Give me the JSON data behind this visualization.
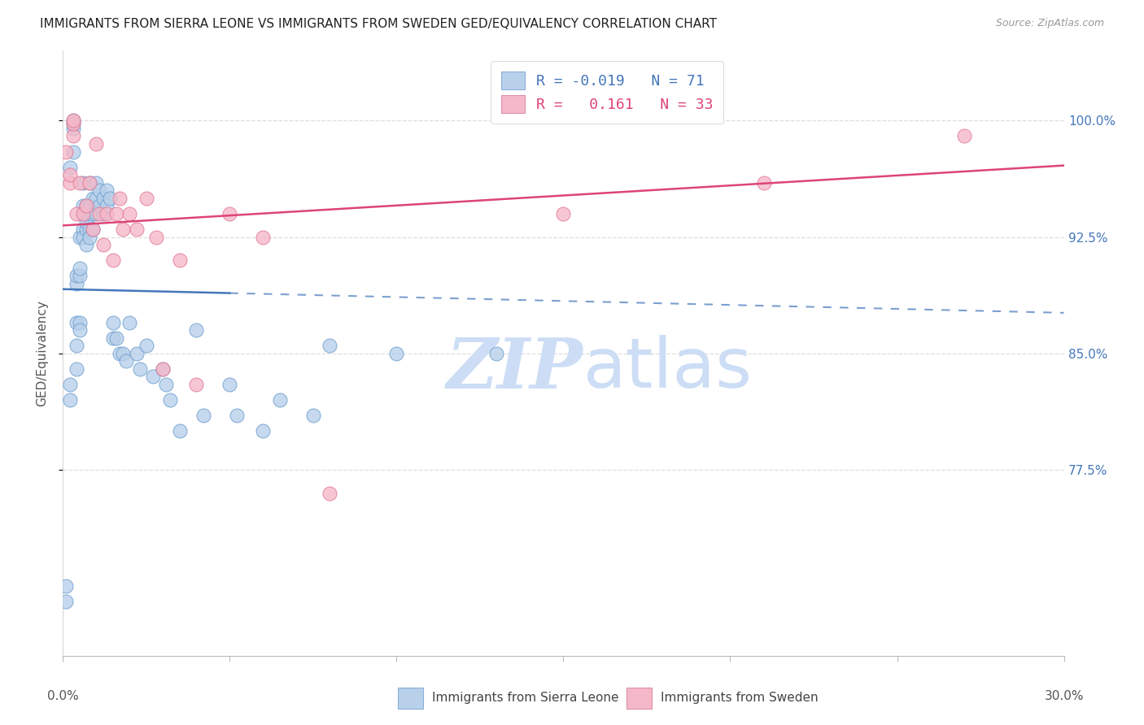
{
  "title": "IMMIGRANTS FROM SIERRA LEONE VS IMMIGRANTS FROM SWEDEN GED/EQUIVALENCY CORRELATION CHART",
  "source": "Source: ZipAtlas.com",
  "ylabel": "GED/Equivalency",
  "ytick_labels": [
    "100.0%",
    "92.5%",
    "85.0%",
    "77.5%"
  ],
  "ytick_values": [
    1.0,
    0.925,
    0.85,
    0.775
  ],
  "xlim": [
    0.0,
    0.3
  ],
  "ylim": [
    0.655,
    1.045
  ],
  "legend_R_blue": "-0.019",
  "legend_N_blue": "71",
  "legend_R_pink": "0.161",
  "legend_N_pink": "33",
  "legend_footer_blue": "Immigrants from Sierra Leone",
  "legend_footer_pink": "Immigrants from Sweden",
  "R_blue": -0.019,
  "R_pink": 0.161,
  "color_blue_fill": "#b8d0ea",
  "color_pink_fill": "#f5b8c8",
  "color_blue_edge": "#6699cc",
  "color_pink_edge": "#e07090",
  "color_blue_line": "#4477bb",
  "color_pink_line": "#dd4477",
  "watermark_color": "#ccddf5",
  "background": "#ffffff",
  "grid_color": "#dddddd",
  "title_color": "#222222",
  "axis_label_color": "#555555",
  "right_tick_color": "#4477bb",
  "sierra_leone_x": [
    0.001,
    0.001,
    0.002,
    0.002,
    0.002,
    0.003,
    0.003,
    0.003,
    0.003,
    0.004,
    0.004,
    0.004,
    0.004,
    0.004,
    0.005,
    0.005,
    0.005,
    0.005,
    0.005,
    0.006,
    0.006,
    0.006,
    0.006,
    0.006,
    0.007,
    0.007,
    0.007,
    0.007,
    0.007,
    0.008,
    0.008,
    0.008,
    0.008,
    0.009,
    0.009,
    0.009,
    0.01,
    0.01,
    0.01,
    0.011,
    0.011,
    0.012,
    0.012,
    0.013,
    0.013,
    0.014,
    0.015,
    0.015,
    0.016,
    0.017,
    0.018,
    0.019,
    0.02,
    0.022,
    0.023,
    0.025,
    0.027,
    0.03,
    0.031,
    0.032,
    0.035,
    0.04,
    0.042,
    0.05,
    0.052,
    0.06,
    0.065,
    0.075,
    0.08,
    0.1,
    0.13
  ],
  "sierra_leone_y": [
    0.7,
    0.69,
    0.83,
    0.82,
    0.97,
    0.995,
    0.998,
    1.0,
    0.98,
    0.84,
    0.855,
    0.87,
    0.895,
    0.9,
    0.87,
    0.865,
    0.9,
    0.905,
    0.925,
    0.93,
    0.925,
    0.94,
    0.945,
    0.96,
    0.93,
    0.92,
    0.935,
    0.94,
    0.945,
    0.93,
    0.925,
    0.945,
    0.96,
    0.93,
    0.94,
    0.95,
    0.94,
    0.95,
    0.96,
    0.945,
    0.955,
    0.94,
    0.95,
    0.945,
    0.955,
    0.95,
    0.86,
    0.87,
    0.86,
    0.85,
    0.85,
    0.845,
    0.87,
    0.85,
    0.84,
    0.855,
    0.835,
    0.84,
    0.83,
    0.82,
    0.8,
    0.865,
    0.81,
    0.83,
    0.81,
    0.8,
    0.82,
    0.81,
    0.855,
    0.85,
    0.85
  ],
  "sweden_x": [
    0.001,
    0.002,
    0.002,
    0.003,
    0.003,
    0.003,
    0.004,
    0.005,
    0.006,
    0.007,
    0.008,
    0.009,
    0.01,
    0.011,
    0.012,
    0.013,
    0.015,
    0.016,
    0.017,
    0.018,
    0.02,
    0.022,
    0.025,
    0.028,
    0.03,
    0.035,
    0.04,
    0.05,
    0.06,
    0.08,
    0.15,
    0.21,
    0.27
  ],
  "sweden_y": [
    0.98,
    0.96,
    0.965,
    0.99,
    0.998,
    1.0,
    0.94,
    0.96,
    0.94,
    0.945,
    0.96,
    0.93,
    0.985,
    0.94,
    0.92,
    0.94,
    0.91,
    0.94,
    0.95,
    0.93,
    0.94,
    0.93,
    0.95,
    0.925,
    0.84,
    0.91,
    0.83,
    0.94,
    0.925,
    0.76,
    0.94,
    0.96,
    0.99
  ]
}
